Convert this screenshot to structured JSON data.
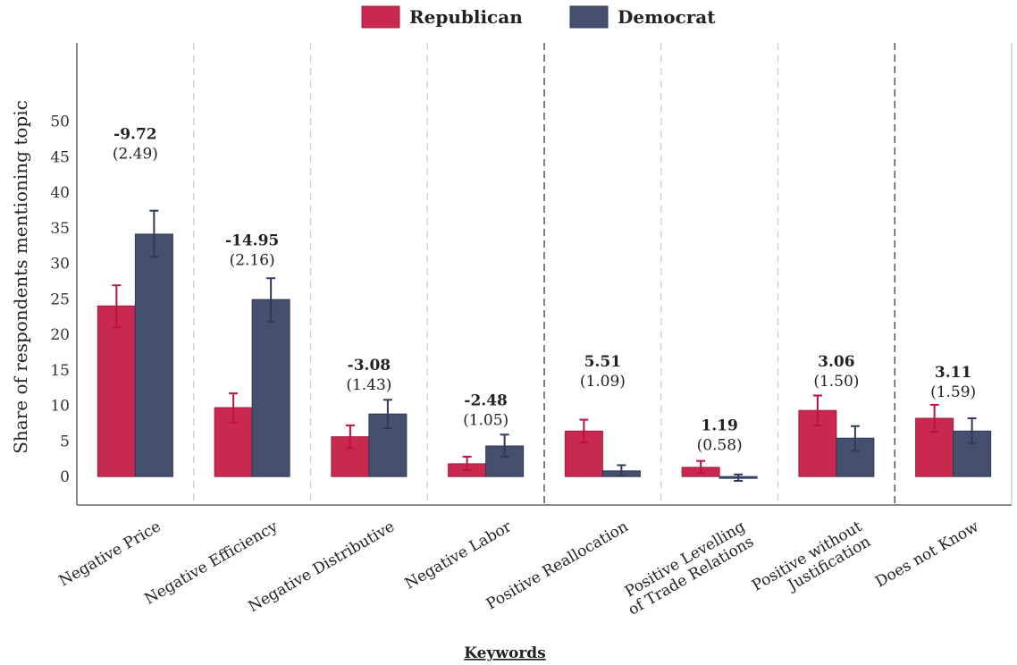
{
  "chart_data": {
    "type": "bar",
    "xlabel": "Keywords",
    "ylabel": "Share of respondents mentioning topic",
    "ylim": [
      -4,
      61
    ],
    "yticks": [
      0,
      5,
      10,
      15,
      20,
      25,
      30,
      35,
      40,
      45,
      50
    ],
    "grid": false,
    "legend_position": "top-center",
    "categories": [
      [
        "Negative Price"
      ],
      [
        "Negative Efficiency"
      ],
      [
        "Negative Distributive"
      ],
      [
        "Negative Labor"
      ],
      [
        "Positive Reallocation"
      ],
      [
        "Positive Levelling",
        "of Trade Relations"
      ],
      [
        "Positive without",
        "Justification"
      ],
      [
        "Does not Know"
      ]
    ],
    "series": [
      {
        "name": "Republican",
        "color": "#C9284F",
        "values": [
          24.0,
          9.7,
          5.6,
          1.8,
          6.4,
          1.3,
          9.3,
          8.2
        ],
        "ci_low": [
          21.0,
          7.6,
          4.0,
          0.9,
          4.8,
          0.5,
          7.2,
          6.3
        ],
        "ci_high": [
          26.9,
          11.7,
          7.2,
          2.8,
          8.0,
          2.2,
          11.4,
          10.1
        ]
      },
      {
        "name": "Democrat",
        "color": "#44506E",
        "values": [
          34.1,
          24.9,
          8.8,
          4.3,
          0.8,
          -0.2,
          5.4,
          6.4
        ],
        "ci_low": [
          30.9,
          21.8,
          6.8,
          2.8,
          0.1,
          -0.6,
          3.6,
          4.7
        ],
        "ci_high": [
          37.4,
          27.9,
          10.8,
          5.9,
          1.6,
          0.3,
          7.1,
          8.2
        ]
      }
    ],
    "annotations": [
      {
        "diff": "-9.72",
        "se": "(2.49)"
      },
      {
        "diff": "-14.95",
        "se": "(2.16)"
      },
      {
        "diff": "-3.08",
        "se": "(1.43)"
      },
      {
        "diff": "-2.48",
        "se": "(1.05)"
      },
      {
        "diff": "5.51",
        "se": "(1.09)"
      },
      {
        "diff": "1.19",
        "se": "(0.58)"
      },
      {
        "diff": "3.06",
        "se": "(1.50)"
      },
      {
        "diff": "3.11",
        "se": "(1.59)"
      }
    ],
    "annotation_values": [
      47.5,
      32.5,
      15.0,
      10.0,
      15.5,
      6.5,
      15.5,
      14.0
    ],
    "group_dividers": {
      "dashed_dark_after": [
        3,
        6
      ],
      "dashed_light_after": [
        0,
        1,
        2,
        4,
        5
      ]
    }
  }
}
